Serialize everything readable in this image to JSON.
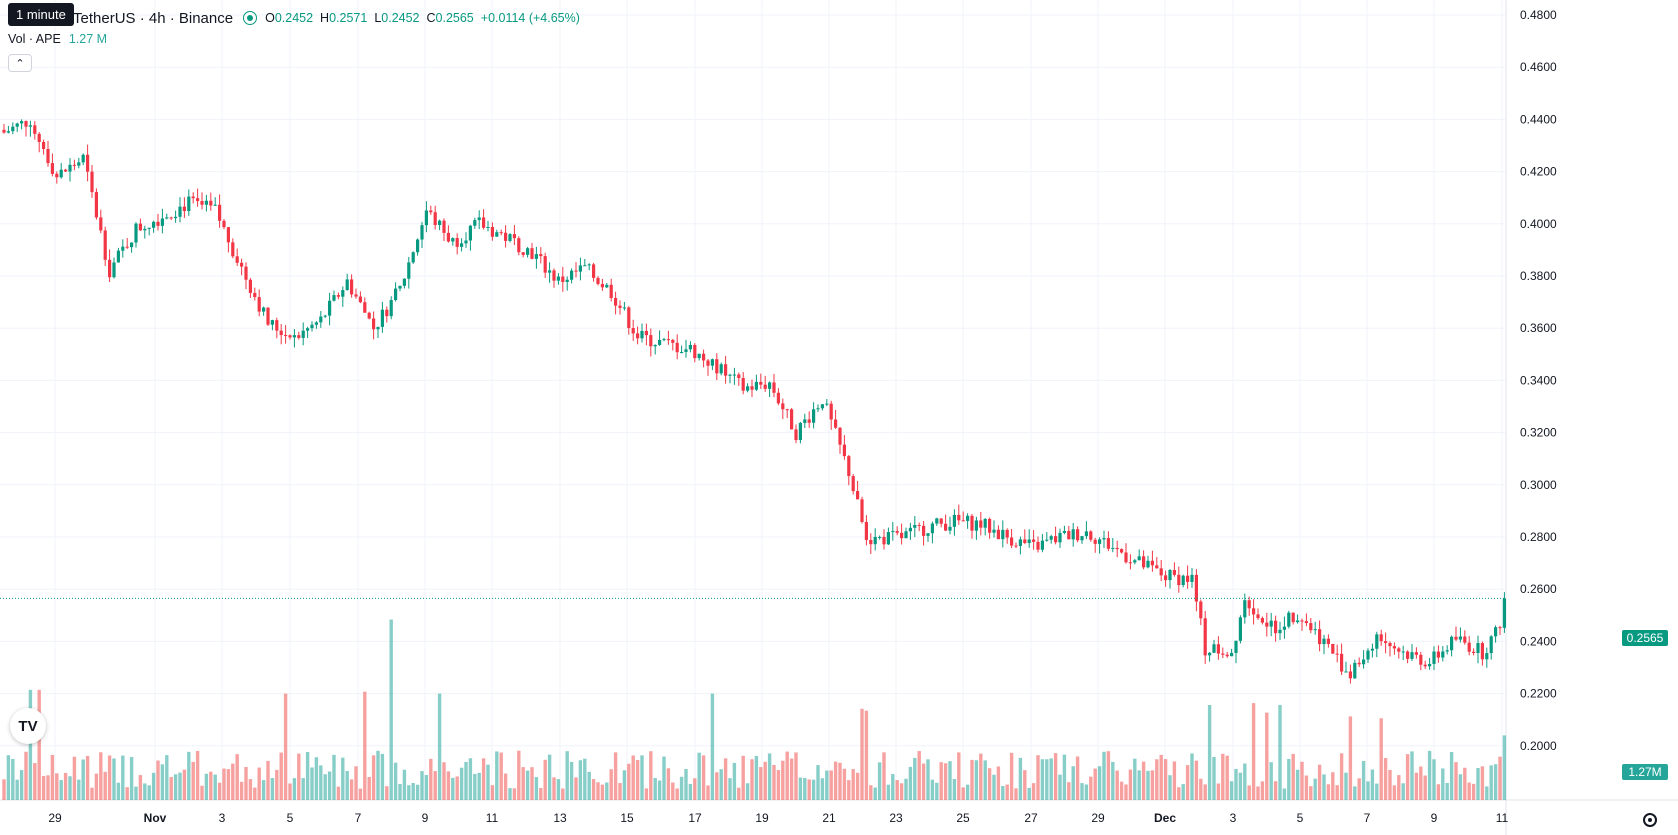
{
  "legend": {
    "symbol_title": "TetherUS · 4h · Binance",
    "open_label": "O",
    "open": "0.2452",
    "high_label": "H",
    "high": "0.2571",
    "low_label": "L",
    "low": "0.2452",
    "close_label": "C",
    "close": "0.2565",
    "change": "+0.0114 (+4.65%)"
  },
  "tooltip": "1 minute",
  "volume_legend": {
    "label": "Vol · APE",
    "value": "1.27 M"
  },
  "last_price_tag": "0.2565",
  "volume_tag": "1.27M",
  "colors": {
    "up": "#089981",
    "down": "#f23645",
    "vol_up": "#26a69a",
    "vol_down": "#ef5350"
  },
  "icons": {
    "collapse": "chevron-up-icon",
    "logo": "tradingview-logo-icon",
    "settings": "gear-icon"
  },
  "chart_data": {
    "type": "candlestick",
    "interval": "4h",
    "x_tick_labels": [
      "29",
      "Nov",
      "3",
      "5",
      "7",
      "9",
      "11",
      "13",
      "15",
      "17",
      "19",
      "21",
      "23",
      "25",
      "27",
      "29",
      "Dec",
      "3",
      "5",
      "7",
      "9",
      "11"
    ],
    "y_tick_labels": [
      "0.4800",
      "0.4600",
      "0.4400",
      "0.4200",
      "0.4000",
      "0.3800",
      "0.3600",
      "0.3400",
      "0.3200",
      "0.3000",
      "0.2800",
      "0.2600",
      "0.2400",
      "0.2200",
      "0.2000"
    ],
    "ylim": [
      0.195,
      0.485
    ],
    "last_close": 0.2565,
    "grid": true,
    "close_path": [
      {
        "t": 0,
        "c": 0.435
      },
      {
        "t": 6,
        "c": 0.44
      },
      {
        "t": 12,
        "c": 0.418
      },
      {
        "t": 18,
        "c": 0.425
      },
      {
        "t": 24,
        "c": 0.382
      },
      {
        "t": 30,
        "c": 0.398
      },
      {
        "t": 36,
        "c": 0.403
      },
      {
        "t": 42,
        "c": 0.408
      },
      {
        "t": 48,
        "c": 0.405
      },
      {
        "t": 54,
        "c": 0.383
      },
      {
        "t": 60,
        "c": 0.362
      },
      {
        "t": 66,
        "c": 0.356
      },
      {
        "t": 72,
        "c": 0.363
      },
      {
        "t": 78,
        "c": 0.378
      },
      {
        "t": 84,
        "c": 0.36
      },
      {
        "t": 90,
        "c": 0.375
      },
      {
        "t": 96,
        "c": 0.405
      },
      {
        "t": 102,
        "c": 0.393
      },
      {
        "t": 108,
        "c": 0.4
      },
      {
        "t": 114,
        "c": 0.395
      },
      {
        "t": 120,
        "c": 0.389
      },
      {
        "t": 126,
        "c": 0.378
      },
      {
        "t": 132,
        "c": 0.383
      },
      {
        "t": 138,
        "c": 0.374
      },
      {
        "t": 144,
        "c": 0.357
      },
      {
        "t": 150,
        "c": 0.354
      },
      {
        "t": 156,
        "c": 0.352
      },
      {
        "t": 162,
        "c": 0.345
      },
      {
        "t": 168,
        "c": 0.337
      },
      {
        "t": 174,
        "c": 0.339
      },
      {
        "t": 180,
        "c": 0.32
      },
      {
        "t": 186,
        "c": 0.333
      },
      {
        "t": 192,
        "c": 0.305
      },
      {
        "t": 196,
        "c": 0.279
      },
      {
        "t": 204,
        "c": 0.28
      },
      {
        "t": 210,
        "c": 0.284
      },
      {
        "t": 216,
        "c": 0.286
      },
      {
        "t": 222,
        "c": 0.285
      },
      {
        "t": 228,
        "c": 0.28
      },
      {
        "t": 234,
        "c": 0.276
      },
      {
        "t": 240,
        "c": 0.28
      },
      {
        "t": 246,
        "c": 0.282
      },
      {
        "t": 252,
        "c": 0.276
      },
      {
        "t": 258,
        "c": 0.27
      },
      {
        "t": 264,
        "c": 0.265
      },
      {
        "t": 270,
        "c": 0.264
      },
      {
        "t": 273,
        "c": 0.237
      },
      {
        "t": 279,
        "c": 0.236
      },
      {
        "t": 282,
        "c": 0.257
      },
      {
        "t": 288,
        "c": 0.245
      },
      {
        "t": 294,
        "c": 0.251
      },
      {
        "t": 300,
        "c": 0.24
      },
      {
        "t": 306,
        "c": 0.227
      },
      {
        "t": 312,
        "c": 0.242
      },
      {
        "t": 318,
        "c": 0.236
      },
      {
        "t": 324,
        "c": 0.232
      },
      {
        "t": 330,
        "c": 0.241
      },
      {
        "t": 336,
        "c": 0.236
      },
      {
        "t": 340,
        "c": 0.2452
      },
      {
        "t": 341,
        "c": 0.2565
      }
    ],
    "volume_spikes": [
      {
        "t": 88,
        "v": 0.95
      },
      {
        "t": 8,
        "v": 0.58
      },
      {
        "t": 6,
        "v": 0.58
      },
      {
        "t": 64,
        "v": 0.56
      },
      {
        "t": 82,
        "v": 0.57
      },
      {
        "t": 99,
        "v": 0.56
      },
      {
        "t": 161,
        "v": 0.56
      },
      {
        "t": 195,
        "v": 0.48
      },
      {
        "t": 196,
        "v": 0.47
      },
      {
        "t": 274,
        "v": 0.5
      },
      {
        "t": 284,
        "v": 0.51
      },
      {
        "t": 287,
        "v": 0.46
      },
      {
        "t": 290,
        "v": 0.5
      },
      {
        "t": 313,
        "v": 0.43
      },
      {
        "t": 306,
        "v": 0.44
      },
      {
        "t": 341,
        "v": 0.34
      }
    ]
  }
}
